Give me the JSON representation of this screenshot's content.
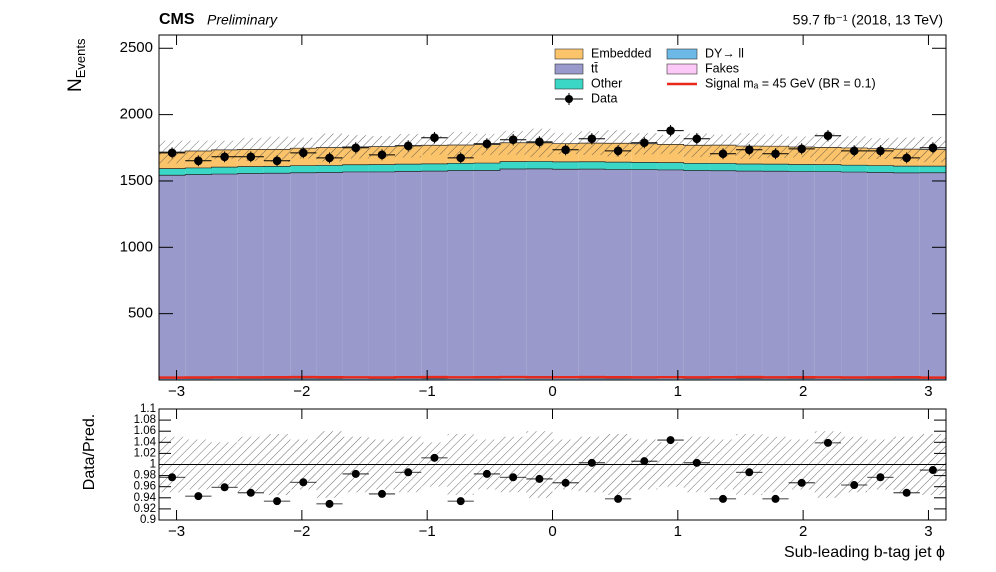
{
  "chart_data": {
    "type": "stacked_histogram",
    "title": "CMS",
    "subtitle": "Preliminary",
    "lumi": "59.7 fb⁻¹ (2018, 13 TeV)",
    "ylabel": "N",
    "ylabel_sub": "Events",
    "xlabel": "Sub-leading b-tag jet ϕ",
    "xlim": [
      -3.14,
      3.14
    ],
    "xticks": [
      {
        "value": -3,
        "label": "−3"
      },
      {
        "value": -2,
        "label": "−2"
      },
      {
        "value": -1,
        "label": "−1"
      },
      0,
      1,
      2,
      3
    ],
    "ylim": [
      0,
      2600
    ],
    "yticks": [
      500,
      1000,
      1500,
      2000,
      2500
    ],
    "bins": [
      -3.14,
      -2.931,
      -2.721,
      -2.512,
      -2.303,
      -2.093,
      -1.884,
      -1.675,
      -1.465,
      -1.256,
      -1.047,
      -0.837,
      -0.628,
      -0.419,
      -0.209,
      0,
      0.209,
      0.419,
      0.628,
      0.837,
      1.047,
      1.256,
      1.465,
      1.675,
      1.884,
      2.093,
      2.303,
      2.512,
      2.721,
      2.931,
      3.14
    ],
    "series": [
      {
        "name": "DY→ ll",
        "color": "#6cb8e6",
        "values": [
          14,
          12,
          13,
          12,
          12,
          13,
          12,
          14,
          12,
          13,
          12,
          14,
          13,
          18,
          22,
          14,
          13,
          12,
          13,
          14,
          12,
          13,
          12,
          13,
          12,
          14,
          13,
          12,
          12,
          13
        ]
      },
      {
        "name": "Fakes",
        "color": "#fcc8f8",
        "values": [
          4,
          4,
          4,
          4,
          4,
          4,
          4,
          4,
          4,
          4,
          4,
          4,
          4,
          4,
          4,
          4,
          4,
          4,
          4,
          4,
          4,
          4,
          4,
          4,
          4,
          4,
          4,
          4,
          4,
          4
        ]
      },
      {
        "name": "tt̄",
        "color": "#9999cc",
        "values": [
          1525,
          1532,
          1535,
          1540,
          1542,
          1545,
          1548,
          1550,
          1552,
          1555,
          1558,
          1560,
          1562,
          1568,
          1565,
          1570,
          1572,
          1570,
          1568,
          1565,
          1562,
          1560,
          1558,
          1556,
          1555,
          1552,
          1550,
          1548,
          1545,
          1545
        ]
      },
      {
        "name": "Other",
        "color": "#3ad6c6",
        "values": [
          50,
          50,
          52,
          52,
          52,
          53,
          53,
          54,
          55,
          55,
          55,
          55,
          56,
          56,
          56,
          56,
          56,
          56,
          55,
          55,
          55,
          55,
          54,
          54,
          53,
          53,
          52,
          52,
          51,
          50
        ]
      },
      {
        "name": "Embedded",
        "color": "#fcc46a",
        "values": [
          125,
          128,
          130,
          130,
          128,
          132,
          135,
          135,
          136,
          138,
          140,
          138,
          140,
          142,
          140,
          138,
          140,
          142,
          140,
          138,
          136,
          138,
          135,
          135,
          132,
          130,
          130,
          128,
          128,
          125
        ]
      }
    ],
    "legend_order": [
      4,
      2,
      3,
      0,
      1
    ],
    "signal": {
      "name": "Signal mₐ = 45 GeV (BR = 0.1)",
      "color": "#e8281a",
      "values": [
        18,
        19,
        20,
        20,
        21,
        22,
        21,
        20,
        19,
        21,
        22,
        20,
        21,
        22,
        20,
        21,
        22,
        21,
        20,
        21,
        20,
        21,
        22,
        20,
        21,
        20,
        19,
        20,
        21,
        18
      ]
    },
    "data": {
      "name": "Data",
      "color": "#000000",
      "values": [
        1712,
        1652,
        1682,
        1682,
        1652,
        1712,
        1674,
        1750,
        1697,
        1765,
        1826,
        1674,
        1780,
        1811,
        1795,
        1735,
        1818,
        1727,
        1788,
        1879,
        1818,
        1705,
        1735,
        1705,
        1742,
        1841,
        1727,
        1727,
        1674,
        1750
      ],
      "errors": [
        41,
        41,
        41,
        41,
        41,
        41,
        41,
        42,
        41,
        42,
        43,
        41,
        42,
        43,
        42,
        42,
        43,
        42,
        42,
        43,
        43,
        41,
        42,
        41,
        42,
        43,
        42,
        42,
        41,
        42
      ]
    },
    "uncertainty": [
      0.05,
      0.045,
      0.04,
      0.05,
      0.055,
      0.045,
      0.06,
      0.05,
      0.045,
      0.05,
      0.04,
      0.055,
      0.045,
      0.05,
      0.06,
      0.045,
      0.05,
      0.055,
      0.045,
      0.04,
      0.05,
      0.045,
      0.055,
      0.05,
      0.045,
      0.06,
      0.05,
      0.045,
      0.05,
      0.055
    ],
    "ratio": {
      "ylabel": "Data/Pred.",
      "ylim": [
        0.9,
        1.1
      ],
      "yticks": [
        0.9,
        0.92,
        0.94,
        0.96,
        0.98,
        1,
        1.02,
        1.04,
        1.06,
        1.08,
        1.1
      ],
      "values": [
        0.977,
        0.943,
        0.959,
        0.949,
        0.934,
        0.968,
        0.929,
        0.983,
        0.947,
        0.986,
        1.012,
        0.934,
        0.983,
        0.977,
        0.974,
        0.967,
        1.003,
        0.938,
        1.006,
        1.044,
        1.003,
        0.938,
        0.986,
        0.938,
        0.967,
        1.039,
        0.963,
        0.977,
        0.949,
        0.99
      ]
    }
  }
}
